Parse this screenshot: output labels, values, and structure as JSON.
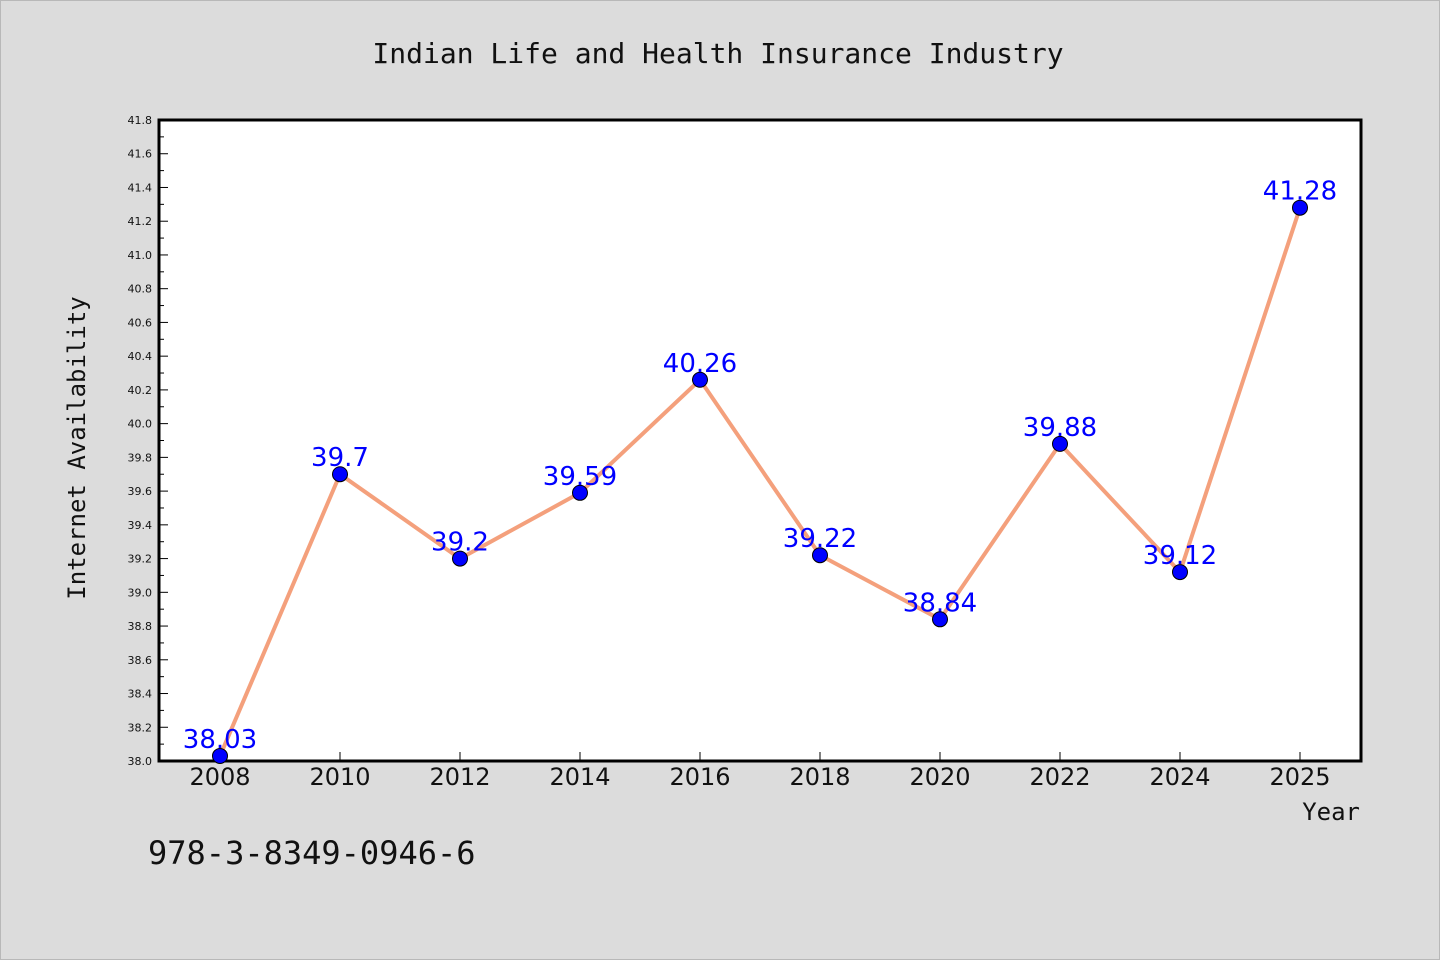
{
  "chart_data": {
    "type": "line",
    "title": "Indian Life and Health Insurance Industry",
    "xlabel": "Year",
    "ylabel": "Internet Availability",
    "categories": [
      "2008",
      "2010",
      "2012",
      "2014",
      "2016",
      "2018",
      "2020",
      "2022",
      "2024",
      "2025"
    ],
    "series": [
      {
        "values": [
          38.03,
          39.7,
          39.2,
          39.59,
          40.26,
          39.22,
          38.84,
          39.88,
          39.12,
          41.28
        ],
        "labels": [
          "38.03",
          "39.7",
          "39.2",
          "39.59",
          "40.26",
          "39.22",
          "38.84",
          "39.88",
          "39.12",
          "41.28"
        ],
        "line_color": "#f4a07c",
        "marker_color": "#0000ff"
      }
    ],
    "ylim": [
      38.0,
      41.8
    ],
    "yticks": [
      "38.0",
      "38.2",
      "38.4",
      "38.6",
      "38.8",
      "39.0",
      "39.2",
      "39.4",
      "39.6",
      "39.8",
      "40.0",
      "40.2",
      "40.4",
      "40.6",
      "40.8",
      "41.0",
      "41.2",
      "41.4",
      "41.6",
      "41.8"
    ],
    "grid": false,
    "legend": "none"
  },
  "footer": {
    "isbn": "978-3-8349-0946-6"
  },
  "colors": {
    "background": "#dcdcdc",
    "plot_background": "#ffffff",
    "line": "#f4a07c",
    "marker": "#0000ff",
    "data_label": "#0000ff"
  }
}
